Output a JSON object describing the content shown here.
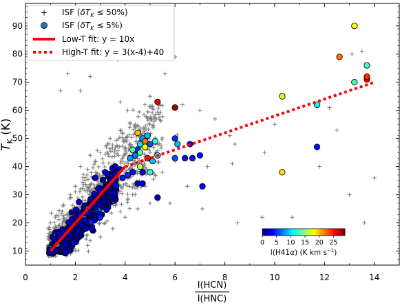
{
  "chart_data": {
    "type": "scatter",
    "xlabel_num": "I(HCN)",
    "xlabel_den": "I(HNC)",
    "ylabel": "T_K (K)",
    "xlim": [
      0,
      15
    ],
    "ylim": [
      5,
      98
    ],
    "xticks": [
      0,
      2,
      4,
      6,
      8,
      10,
      12,
      14
    ],
    "yticks": [
      10,
      20,
      30,
      40,
      50,
      60,
      70,
      80,
      90
    ],
    "legend_position": "top-left",
    "legend": {
      "isf50": "ISF (δT_K ≤ 50%)",
      "isf5": "ISF (δT_K ≤ 5%)",
      "low_fit": "Low-T fit: y = 10x",
      "high_fit": "High-T fit: y = 3(x-4)+40"
    },
    "colorbar": {
      "label": "I(H41α) (K km s⁻¹)",
      "min": 0,
      "max": 29,
      "ticks": [
        0,
        5,
        10,
        15,
        20,
        25
      ],
      "colors": [
        "#00007f",
        "#0000ff",
        "#007fff",
        "#00ffff",
        "#7fff7f",
        "#ffff00",
        "#ff7f00",
        "#ff0000",
        "#7f0000"
      ]
    },
    "fits": [
      {
        "name": "Low-T fit: y = 10x",
        "color": "#ff0000",
        "style": "solid",
        "x": [
          1,
          4
        ],
        "y": [
          10,
          40
        ]
      },
      {
        "name": "High-T fit: y = 3(x-4)+40",
        "color": "#ff0000",
        "style": "dotted",
        "x": [
          4,
          14
        ],
        "y": [
          40,
          70
        ]
      }
    ],
    "series_gray": {
      "name": "ISF (δT_K ≤ 50%)",
      "color": "#808080",
      "core_points": [
        [
          0.9,
          12
        ],
        [
          1.0,
          14
        ],
        [
          1.1,
          11
        ],
        [
          1.2,
          16
        ],
        [
          1.3,
          13
        ],
        [
          1.4,
          18
        ],
        [
          1.5,
          12
        ],
        [
          1.6,
          20
        ],
        [
          1.7,
          15
        ],
        [
          1.8,
          22
        ],
        [
          1.9,
          17
        ],
        [
          2.0,
          24
        ],
        [
          2.1,
          14
        ],
        [
          2.2,
          26
        ],
        [
          2.3,
          19
        ],
        [
          2.4,
          28
        ],
        [
          2.5,
          21
        ],
        [
          2.6,
          30
        ],
        [
          2.7,
          23
        ],
        [
          2.8,
          32
        ],
        [
          2.9,
          25
        ],
        [
          3.0,
          34
        ],
        [
          3.1,
          27
        ],
        [
          3.2,
          36
        ],
        [
          3.3,
          29
        ],
        [
          3.4,
          38
        ],
        [
          3.5,
          31
        ],
        [
          3.6,
          40
        ],
        [
          3.7,
          33
        ],
        [
          3.8,
          42
        ],
        [
          1.2,
          22
        ],
        [
          1.5,
          26
        ],
        [
          1.8,
          30
        ],
        [
          2.0,
          33
        ],
        [
          2.3,
          36
        ],
        [
          2.5,
          39
        ],
        [
          2.8,
          42
        ],
        [
          3.0,
          45
        ],
        [
          3.3,
          48
        ],
        [
          1.0,
          20
        ],
        [
          2.2,
          40
        ],
        [
          2.6,
          44
        ],
        [
          3.4,
          50
        ],
        [
          3.9,
          52
        ],
        [
          4.2,
          47
        ],
        [
          4.4,
          55
        ],
        [
          4.7,
          51
        ],
        [
          5.0,
          45
        ],
        [
          5.2,
          57
        ],
        [
          2.0,
          10
        ],
        [
          2.5,
          12
        ],
        [
          3.0,
          15
        ],
        [
          3.5,
          18
        ],
        [
          4.0,
          22
        ],
        [
          4.5,
          25
        ],
        [
          5.0,
          27
        ],
        [
          3.2,
          20
        ],
        [
          3.8,
          24
        ],
        [
          4.3,
          30
        ],
        [
          4.8,
          33
        ],
        [
          5.5,
          38
        ],
        [
          6.0,
          42
        ]
      ],
      "outliers": [
        [
          1.4,
          67
        ],
        [
          1.7,
          73
        ],
        [
          2.2,
          67
        ],
        [
          2.6,
          72
        ],
        [
          3.4,
          85
        ],
        [
          3.7,
          78
        ],
        [
          3.8,
          63
        ],
        [
          4.1,
          60
        ],
        [
          4.8,
          62
        ],
        [
          5.0,
          65
        ],
        [
          5.6,
          73
        ],
        [
          6.0,
          79
        ],
        [
          6.3,
          62
        ],
        [
          7.0,
          60
        ],
        [
          7.6,
          57
        ],
        [
          8.2,
          51
        ],
        [
          8.4,
          48
        ],
        [
          8.3,
          41
        ],
        [
          7.3,
          40
        ],
        [
          6.5,
          33
        ],
        [
          5.8,
          27
        ],
        [
          7.1,
          25
        ],
        [
          8.5,
          20
        ],
        [
          9.5,
          22
        ],
        [
          10.7,
          22
        ],
        [
          10.2,
          16
        ],
        [
          13.0,
          30
        ],
        [
          13.6,
          20
        ],
        [
          14.0,
          36
        ],
        [
          12.2,
          61
        ],
        [
          13.1,
          80
        ],
        [
          13.5,
          81
        ],
        [
          12.5,
          53
        ],
        [
          11.8,
          40
        ],
        [
          10.0,
          55
        ],
        [
          9.6,
          45
        ]
      ]
    },
    "series_colored": {
      "name": "ISF (δT_K ≤ 5%)",
      "core_count": 420,
      "points": [
        [
          4.5,
          52,
          20
        ],
        [
          4.6,
          48,
          10
        ],
        [
          4.7,
          50,
          8
        ],
        [
          4.8,
          49,
          22
        ],
        [
          4.9,
          51,
          9
        ],
        [
          5.0,
          48,
          6
        ],
        [
          5.2,
          49,
          12
        ],
        [
          4.4,
          44,
          7
        ],
        [
          4.5,
          46,
          5
        ],
        [
          4.6,
          45,
          14
        ],
        [
          4.8,
          47,
          18
        ],
        [
          4.9,
          43,
          25
        ],
        [
          5.1,
          42,
          9
        ],
        [
          5.3,
          44,
          11
        ],
        [
          4.2,
          43,
          8
        ],
        [
          4.3,
          46,
          13
        ],
        [
          4.6,
          40,
          16
        ],
        [
          4.7,
          38,
          3
        ],
        [
          5.0,
          38,
          12
        ],
        [
          4.3,
          38,
          4
        ],
        [
          4.5,
          34,
          2
        ],
        [
          4.7,
          34,
          3
        ],
        [
          5.3,
          29,
          2
        ],
        [
          5.3,
          63,
          26
        ],
        [
          6.0,
          61,
          28
        ],
        [
          6.0,
          50,
          5
        ],
        [
          6.1,
          48,
          9
        ],
        [
          6.0,
          43,
          6
        ],
        [
          6.4,
          43,
          4
        ],
        [
          6.7,
          43,
          4
        ],
        [
          6.6,
          48,
          4
        ],
        [
          7.0,
          44,
          4
        ],
        [
          7.1,
          33,
          3
        ],
        [
          10.3,
          65,
          17
        ],
        [
          10.3,
          38,
          19
        ],
        [
          11.7,
          47,
          4
        ],
        [
          11.7,
          62,
          11
        ],
        [
          12.6,
          79,
          22
        ],
        [
          13.2,
          90,
          18
        ],
        [
          13.2,
          70,
          13
        ],
        [
          13.7,
          76,
          13
        ],
        [
          13.7,
          71,
          26
        ],
        [
          13.7,
          72,
          24
        ],
        [
          3.5,
          35,
          3
        ],
        [
          3.8,
          39,
          2
        ],
        [
          3.9,
          36,
          4
        ],
        [
          4.1,
          37,
          5
        ],
        [
          3.6,
          40,
          2
        ],
        [
          3.3,
          33,
          2
        ],
        [
          3.0,
          31,
          3
        ],
        [
          2.8,
          36,
          2
        ],
        [
          3.2,
          38,
          3
        ]
      ]
    }
  }
}
